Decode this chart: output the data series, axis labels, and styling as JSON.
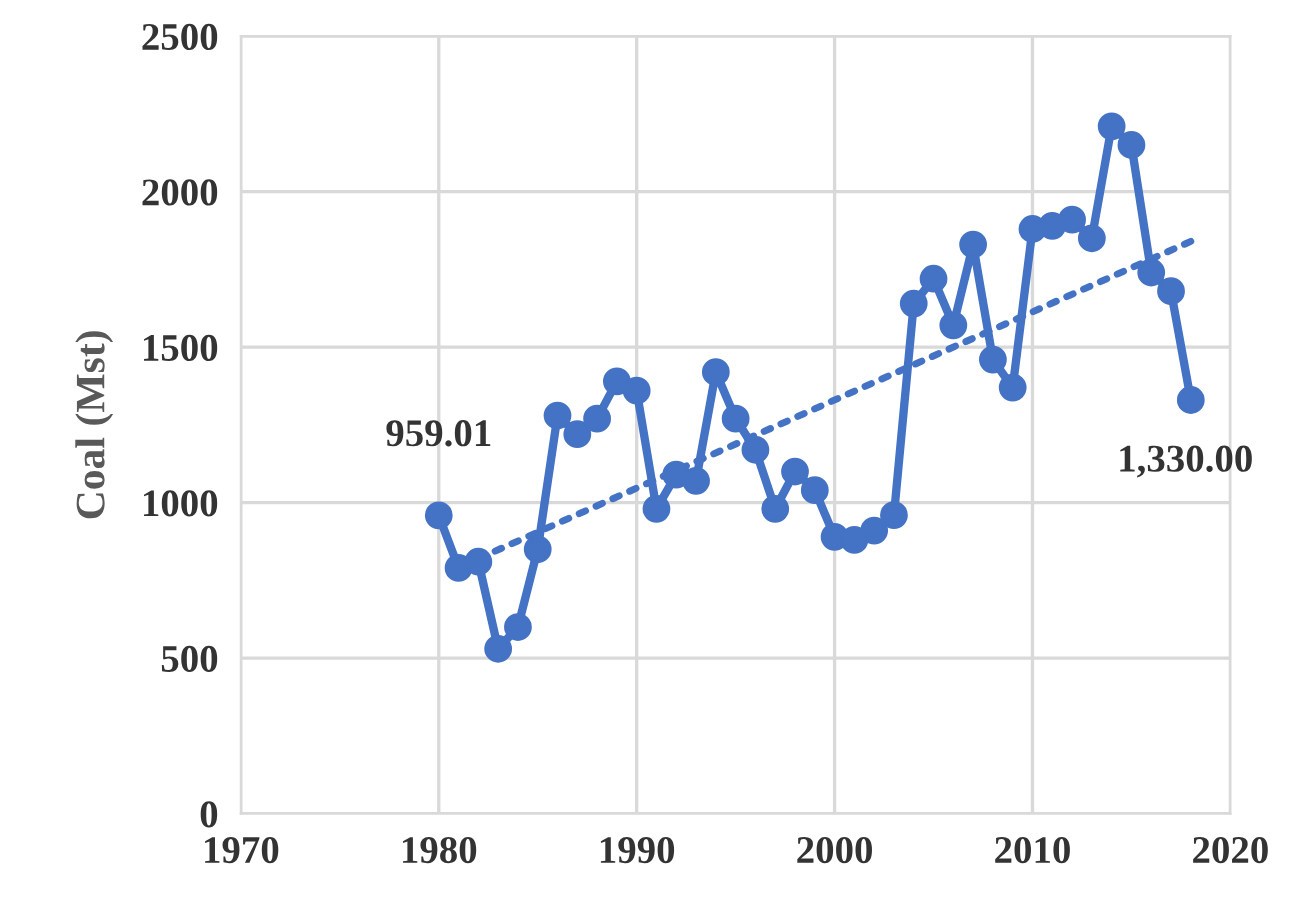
{
  "chart_data": {
    "type": "line",
    "ylabel": "Coal (Mst)",
    "xlim": [
      1970,
      2020
    ],
    "xticks": [
      1970,
      1980,
      1990,
      2000,
      2010,
      2020
    ],
    "ylim": [
      0,
      2500
    ],
    "yticks": [
      0,
      500,
      1000,
      1500,
      2000,
      2500
    ],
    "grid": true,
    "legend": false,
    "series": [
      {
        "color": "#4472c4",
        "marker": "circle",
        "line_style": "solid",
        "x": [
          1980,
          1981,
          1982,
          1983,
          1984,
          1985,
          1986,
          1987,
          1988,
          1989,
          1990,
          1991,
          1992,
          1993,
          1994,
          1995,
          1996,
          1997,
          1998,
          1999,
          2000,
          2001,
          2002,
          2003,
          2004,
          2005,
          2006,
          2007,
          2008,
          2009,
          2010,
          2011,
          2012,
          2013,
          2014,
          2015,
          2016,
          2017,
          2018
        ],
        "values": [
          959.01,
          790,
          810,
          530,
          600,
          850,
          1280,
          1220,
          1270,
          1390,
          1360,
          980,
          1090,
          1070,
          1420,
          1270,
          1170,
          980,
          1100,
          1040,
          890,
          880,
          910,
          960,
          1640,
          1720,
          1570,
          1830,
          1460,
          1370,
          1880,
          1890,
          1910,
          1850,
          2210,
          2150,
          1740,
          1680,
          1330
        ],
        "value_labels": [
          "959.01",
          null,
          null,
          null,
          null,
          null,
          null,
          null,
          null,
          null,
          null,
          null,
          null,
          null,
          null,
          null,
          null,
          null,
          null,
          null,
          null,
          null,
          null,
          null,
          null,
          null,
          null,
          null,
          null,
          null,
          null,
          null,
          null,
          null,
          null,
          null,
          null,
          null,
          "1,330.00"
        ]
      },
      {
        "color": "#4472c4",
        "marker": "none",
        "line_style": "dotted",
        "x": [
          1982,
          2018
        ],
        "values": [
          820,
          1840
        ]
      }
    ]
  }
}
